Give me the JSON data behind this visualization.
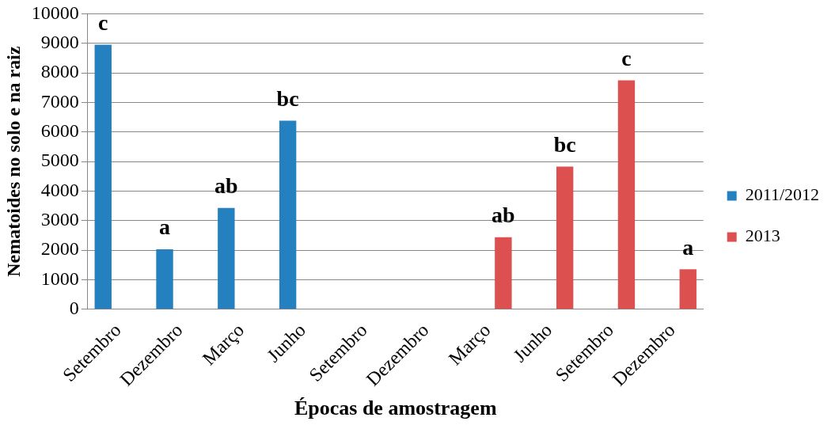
{
  "chart_data": {
    "type": "bar",
    "xlabel": "Épocas de amostragem",
    "ylabel": "Nematoides no solo e na raiz",
    "categories": [
      "Setembro",
      "Dezembro",
      "Março",
      "Junho",
      "Setembro",
      "Dezembro",
      "Março",
      "Junho",
      "Setembro",
      "Dezembro"
    ],
    "series": [
      {
        "name": "2011/2012",
        "color": "#2580c0",
        "values": [
          8950,
          2030,
          3430,
          6380,
          null,
          null,
          null,
          null,
          null,
          null
        ],
        "value_labels": [
          "c",
          "a",
          "ab",
          "bc",
          null,
          null,
          null,
          null,
          null,
          null
        ]
      },
      {
        "name": "2013",
        "color": "#dc5050",
        "values": [
          null,
          null,
          null,
          null,
          null,
          null,
          2440,
          4830,
          7750,
          1350
        ],
        "value_labels": [
          null,
          null,
          null,
          null,
          null,
          null,
          "ab",
          "bc",
          "c",
          "a"
        ]
      }
    ],
    "ylim": [
      0,
      10000
    ],
    "yticks": [
      0,
      1000,
      2000,
      3000,
      4000,
      5000,
      6000,
      7000,
      8000,
      9000,
      10000
    ],
    "grid": "y",
    "legend": "right"
  }
}
